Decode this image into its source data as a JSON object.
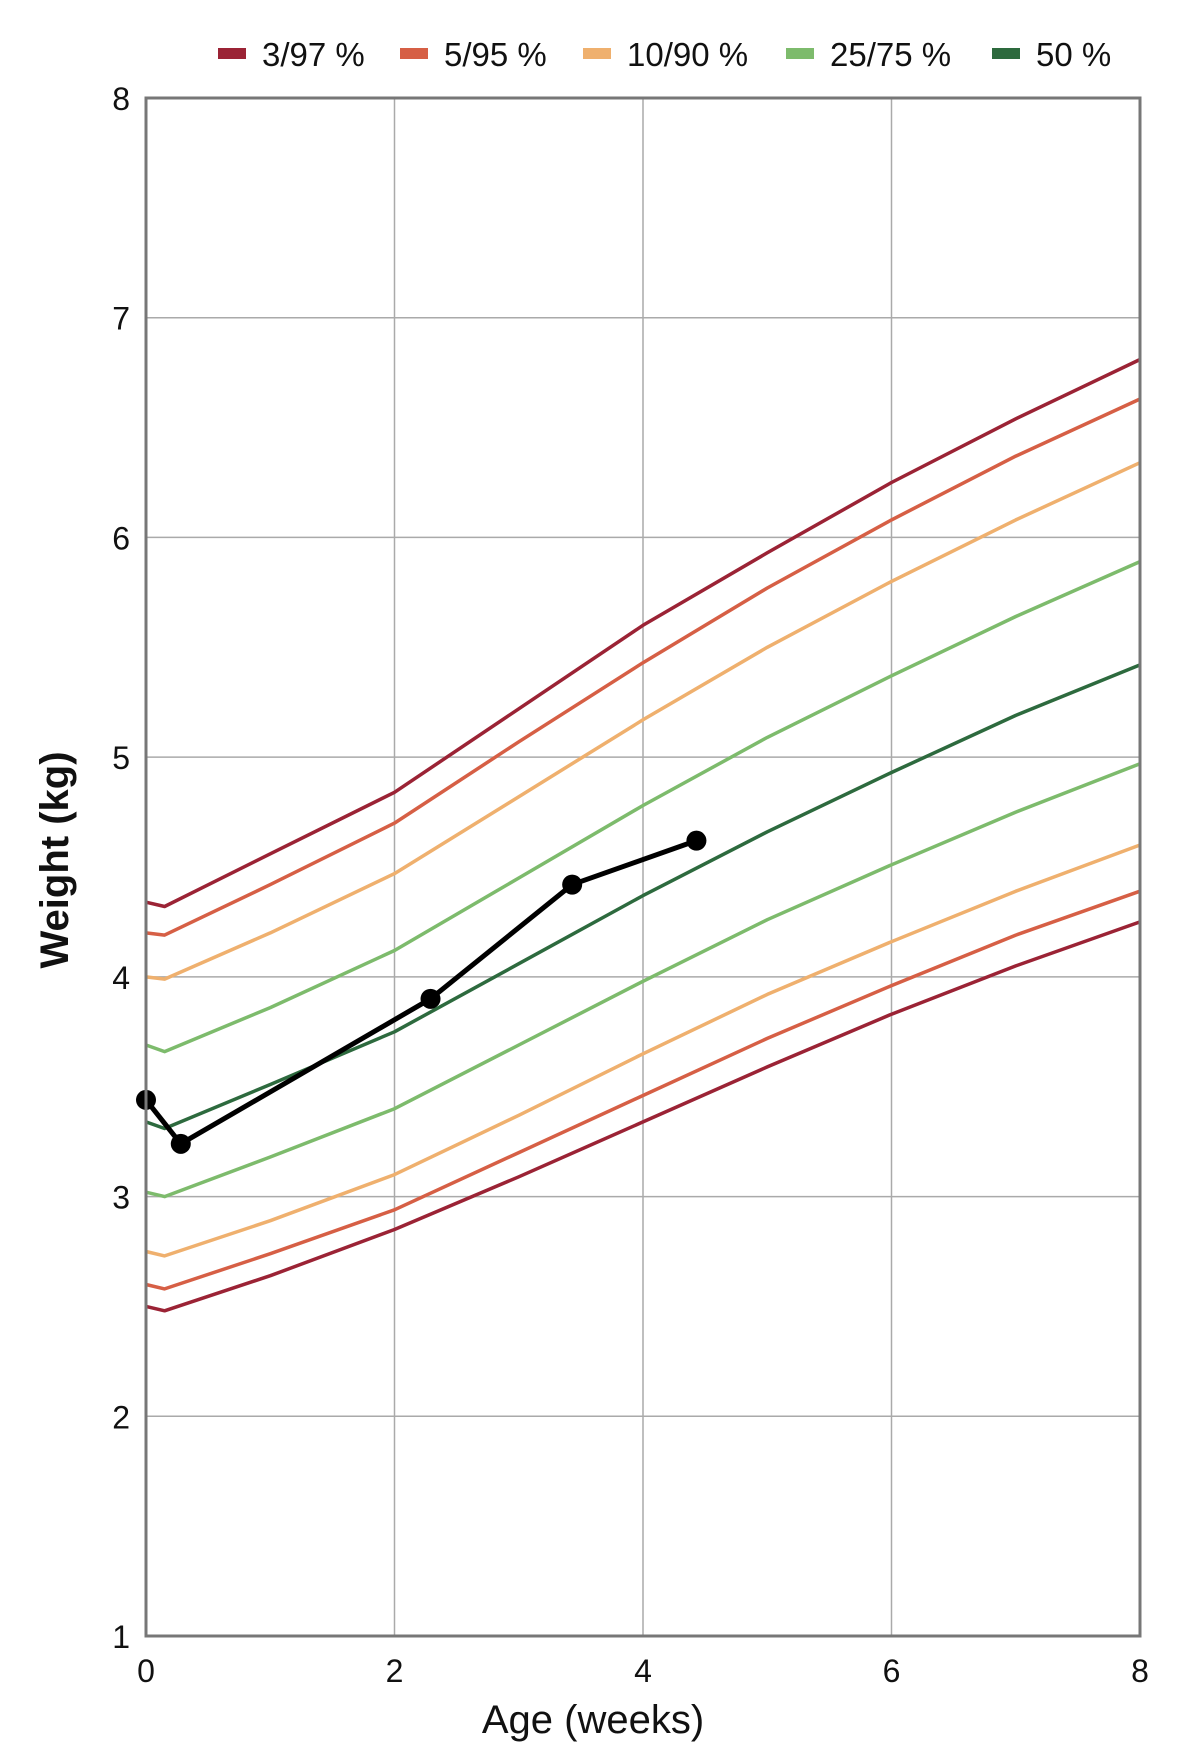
{
  "chart_data": {
    "type": "line",
    "title": "",
    "xlabel": "Age (weeks)",
    "ylabel": "Weight (kg)",
    "xlim": [
      0,
      8
    ],
    "ylim": [
      1,
      8
    ],
    "xticks": [
      0,
      2,
      4,
      6,
      8
    ],
    "yticks": [
      1,
      2,
      3,
      4,
      5,
      6,
      7,
      8
    ],
    "grid": true,
    "legend_position": "top",
    "x": [
      0,
      0.15,
      1,
      2,
      3,
      4,
      5,
      6,
      7,
      8
    ],
    "series": [
      {
        "name": "3/97 %",
        "color": "#9b2335",
        "band": "upper",
        "values": [
          4.34,
          4.32,
          4.56,
          4.84,
          5.22,
          5.6,
          5.93,
          6.25,
          6.54,
          6.81
        ]
      },
      {
        "name": "3/97 %",
        "color": "#9b2335",
        "band": "lower",
        "values": [
          2.5,
          2.48,
          2.64,
          2.85,
          3.09,
          3.34,
          3.59,
          3.83,
          4.05,
          4.25
        ]
      },
      {
        "name": "5/95 %",
        "color": "#d65f45",
        "band": "upper",
        "values": [
          4.2,
          4.19,
          4.42,
          4.7,
          5.07,
          5.43,
          5.77,
          6.08,
          6.37,
          6.63
        ]
      },
      {
        "name": "5/95 %",
        "color": "#d65f45",
        "band": "lower",
        "values": [
          2.6,
          2.58,
          2.74,
          2.94,
          3.2,
          3.46,
          3.72,
          3.96,
          4.19,
          4.39
        ]
      },
      {
        "name": "10/90 %",
        "color": "#efb06e",
        "band": "upper",
        "values": [
          4.0,
          3.99,
          4.2,
          4.47,
          4.82,
          5.17,
          5.5,
          5.8,
          6.08,
          6.34
        ]
      },
      {
        "name": "10/90 %",
        "color": "#efb06e",
        "band": "lower",
        "values": [
          2.75,
          2.73,
          2.89,
          3.1,
          3.37,
          3.65,
          3.92,
          4.16,
          4.39,
          4.6
        ]
      },
      {
        "name": "25/75 %",
        "color": "#7dbb6c",
        "band": "upper",
        "values": [
          3.69,
          3.66,
          3.86,
          4.12,
          4.45,
          4.78,
          5.09,
          5.37,
          5.64,
          5.89
        ]
      },
      {
        "name": "25/75 %",
        "color": "#7dbb6c",
        "band": "lower",
        "values": [
          3.02,
          3.0,
          3.18,
          3.4,
          3.69,
          3.98,
          4.26,
          4.51,
          4.75,
          4.97
        ]
      },
      {
        "name": "50 %",
        "color": "#2d6a3e",
        "band": "median",
        "values": [
          3.34,
          3.31,
          3.51,
          3.75,
          4.06,
          4.37,
          4.66,
          4.93,
          5.19,
          5.42
        ]
      }
    ],
    "legend": [
      {
        "label": "3/97 %",
        "color": "#9b2335"
      },
      {
        "label": "5/95 %",
        "color": "#d65f45"
      },
      {
        "label": "10/90 %",
        "color": "#efb06e"
      },
      {
        "label": "25/75 %",
        "color": "#7dbb6c"
      },
      {
        "label": "50 %",
        "color": "#2d6a3e"
      }
    ],
    "measurements": {
      "color": "#000000",
      "x": [
        0,
        0.28,
        2.29,
        3.43,
        4.43
      ],
      "y": [
        3.44,
        3.24,
        3.9,
        4.42,
        4.62
      ]
    }
  }
}
